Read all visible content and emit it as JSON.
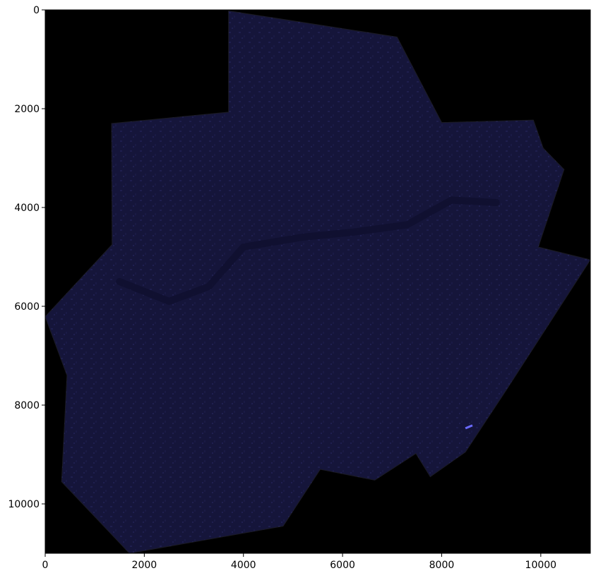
{
  "image_title": "",
  "colors": {
    "background": "#000000",
    "raster_base": "#15153a",
    "raster_light": "#222258",
    "raster_dark": "#0f0f2c",
    "river": "#101030",
    "highlight": "#6a6aff"
  },
  "axes": {
    "x": {
      "range": [
        0,
        11000
      ],
      "ticks": [
        {
          "value": 0,
          "label": "0"
        },
        {
          "value": 2000,
          "label": "2000"
        },
        {
          "value": 4000,
          "label": "4000"
        },
        {
          "value": 6000,
          "label": "6000"
        },
        {
          "value": 8000,
          "label": "8000"
        },
        {
          "value": 10000,
          "label": "10000"
        }
      ]
    },
    "y": {
      "range": [
        0,
        11000
      ],
      "inverted": true,
      "ticks": [
        {
          "value": 0,
          "label": "0"
        },
        {
          "value": 2000,
          "label": "2000"
        },
        {
          "value": 4000,
          "label": "4000"
        },
        {
          "value": 6000,
          "label": "6000"
        },
        {
          "value": 8000,
          "label": "8000"
        },
        {
          "value": 10000,
          "label": "10000"
        }
      ]
    }
  },
  "raster_outline": [
    [
      3700,
      20
    ],
    [
      7100,
      550
    ],
    [
      8000,
      2280
    ],
    [
      9850,
      2230
    ],
    [
      10050,
      2800
    ],
    [
      10470,
      3230
    ],
    [
      9950,
      4800
    ],
    [
      11000,
      5060
    ],
    [
      9300,
      7700
    ],
    [
      8480,
      8950
    ],
    [
      7770,
      9450
    ],
    [
      7480,
      8980
    ],
    [
      6650,
      9520
    ],
    [
      5550,
      9300
    ],
    [
      4800,
      10450
    ],
    [
      1700,
      11000
    ],
    [
      330,
      9550
    ],
    [
      440,
      7400
    ],
    [
      0,
      6210
    ],
    [
      1350,
      4750
    ],
    [
      1340,
      2300
    ],
    [
      3700,
      2070
    ]
  ],
  "river_path": [
    [
      1500,
      5500
    ],
    [
      2500,
      5900
    ],
    [
      3300,
      5600
    ],
    [
      4000,
      4800
    ],
    [
      5200,
      4600
    ],
    [
      6200,
      4500
    ],
    [
      7300,
      4350
    ],
    [
      8200,
      3850
    ],
    [
      9100,
      3900
    ]
  ]
}
